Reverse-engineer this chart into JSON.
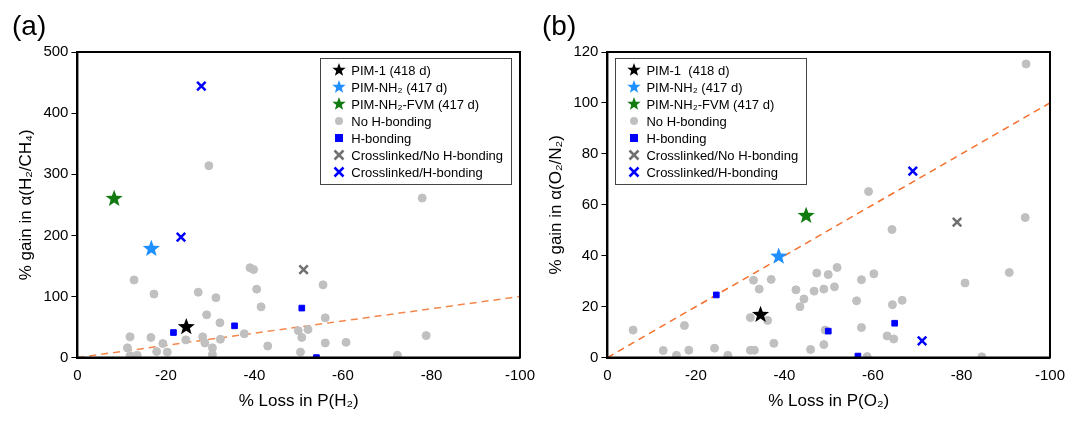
{
  "chart_data": [
    {
      "type": "scatter",
      "title": "(a)",
      "xlabel": "% Loss in P(H₂)",
      "ylabel": "% gain in α(H₂/CH₄)",
      "xlim": [
        0,
        -100
      ],
      "xticks": [
        0,
        -20,
        -40,
        -60,
        -80,
        -100
      ],
      "ylim": [
        0,
        500
      ],
      "yticks": [
        0,
        100,
        200,
        300,
        400,
        500
      ],
      "grid": false,
      "legend": "top right",
      "series": [
        {
          "name": "PIM-1 (418 d)",
          "color": "#000000",
          "marker": "star",
          "x": [
            -24.6
          ],
          "values": [
            50
          ]
        },
        {
          "name": "PIM-NH₂ (417 d)",
          "color": "#1e90ff",
          "marker": "star",
          "x": [
            -16.7
          ],
          "values": [
            178
          ]
        },
        {
          "name": "PIM-NH₂-FVM (417 d)",
          "color": "#117a11",
          "marker": "star",
          "x": [
            -8.3
          ],
          "values": [
            260
          ]
        },
        {
          "name": "No H-bonding",
          "color": "#c0c0c0",
          "marker": "circle",
          "x": [
            -29.7,
            -12.8,
            -17.3,
            -27.3,
            -31.3,
            -39,
            -39.8,
            -40.5,
            -41.5,
            -29.2,
            -32.2,
            -11.9,
            -16.6,
            -11.3,
            -19.3,
            -17.9,
            -20.3,
            -24.5,
            -28.3,
            -28.8,
            -30.5,
            -30.5,
            -32.3,
            -37.7,
            -43,
            -49.9,
            -50.7,
            -50.4,
            -11.9,
            -13.5,
            -77.9,
            -55.5,
            -56,
            -52.1,
            -56,
            -60.7,
            -78.8,
            -72.3
          ],
          "values": [
            314,
            127,
            104,
            107,
            98,
            147,
            144,
            112,
            83,
            70,
            57,
            34,
            33,
            16,
            23,
            10,
            9,
            29,
            34,
            24,
            16,
            5,
            30,
            39,
            19,
            44,
            33,
            9,
            3,
            4,
            261,
            119,
            65,
            46,
            24,
            25,
            36,
            4
          ]
        },
        {
          "name": "H-bonding",
          "color": "#0000ff",
          "marker": "square",
          "x": [
            -21.7,
            -35.5,
            -50.7,
            -54
          ],
          "values": [
            41,
            52,
            81,
            0
          ]
        },
        {
          "name": "Crosslinked/No H-bonding",
          "color": "#707070",
          "marker": "cross",
          "x": [
            -51.1
          ],
          "values": [
            144
          ]
        },
        {
          "name": "Crosslinked/H-bonding",
          "color": "#0000ff",
          "marker": "cross",
          "x": [
            -28,
            -23.4
          ],
          "values": [
            444,
            197
          ]
        },
        {
          "type": "line",
          "color": "#f4874b",
          "marker": "none",
          "line_style": "dashed",
          "x": [
            0,
            -100
          ],
          "values": [
            0,
            100
          ]
        }
      ]
    },
    {
      "type": "scatter",
      "title": "(b)",
      "xlabel": "% Loss in P(O₂)",
      "ylabel": "% gain in α(O₂/N₂)",
      "xlim": [
        0,
        -100
      ],
      "xticks": [
        0,
        -20,
        -40,
        -60,
        -80,
        -100
      ],
      "ylim": [
        0,
        120
      ],
      "yticks": [
        0,
        20,
        40,
        60,
        80,
        100,
        120
      ],
      "grid": false,
      "legend": "top left",
      "series": [
        {
          "name": "PIM-1  (418 d)",
          "color": "#000000",
          "marker": "star",
          "x": [
            -34.6
          ],
          "values": [
            16.8
          ]
        },
        {
          "name": "PIM-NH₂ (417 d)",
          "color": "#1e90ff",
          "marker": "star",
          "x": [
            -38.7
          ],
          "values": [
            39.7
          ]
        },
        {
          "name": "PIM-NH₂-FVM (417 d)",
          "color": "#117a11",
          "marker": "star",
          "x": [
            -44.9
          ],
          "values": [
            55.7
          ]
        },
        {
          "name": "No H-bonding",
          "color": "#c0c0c0",
          "marker": "circle",
          "x": [
            -5.8,
            -17.4,
            -12.6,
            -15.6,
            -18.4,
            -24.2,
            -27.2,
            -32.3,
            -33.2,
            -32.3,
            -36.2,
            -33,
            -34.3,
            -37,
            -37.6,
            -42.6,
            -44.4,
            -43.5,
            -45.9,
            -46.7,
            -47.3,
            -48.9,
            -48.9,
            -49.2,
            -49.9,
            -94.6,
            -59,
            -64.3,
            -94.4,
            -51.9,
            -51.3,
            -57.4,
            -60.2,
            -56.3,
            -64.4,
            -66.6,
            -80.8,
            -90.8,
            -57.4,
            -63.2,
            -64.7,
            -58.7,
            -84.6
          ],
          "values": [
            10.8,
            12.6,
            2.8,
            0.9,
            2.9,
            3.7,
            0.9,
            2.9,
            2.9,
            15.7,
            14.6,
            30.4,
            26.9,
            30.7,
            5.6,
            26.6,
            23,
            20,
            3.2,
            26.1,
            33.2,
            5.1,
            26.9,
            10.8,
            32.6,
            115.3,
            65.2,
            50.3,
            55,
            35.4,
            27.8,
            30.6,
            32.9,
            22.3,
            20.8,
            22.5,
            29.3,
            33.4,
            11.8,
            8.5,
            7.3,
            0.4,
            0.3
          ]
        },
        {
          "name": "H-bonding",
          "color": "#0000ff",
          "marker": "square",
          "x": [
            -24.6,
            -49.9,
            -64.9,
            -56.6
          ],
          "values": [
            24.6,
            10.4,
            13.5,
            0.6
          ]
        },
        {
          "name": "Crosslinked/No H-bonding",
          "color": "#707070",
          "marker": "cross",
          "x": [
            -79
          ],
          "values": [
            53.2
          ]
        },
        {
          "name": "Crosslinked/H-bonding",
          "color": "#0000ff",
          "marker": "cross",
          "x": [
            -69,
            -71.1
          ],
          "values": [
            73.2,
            6.6
          ]
        },
        {
          "type": "line",
          "color": "#f4702c",
          "marker": "none",
          "line_style": "dashed",
          "x": [
            0,
            -100
          ],
          "values": [
            0,
            100
          ]
        }
      ]
    }
  ]
}
